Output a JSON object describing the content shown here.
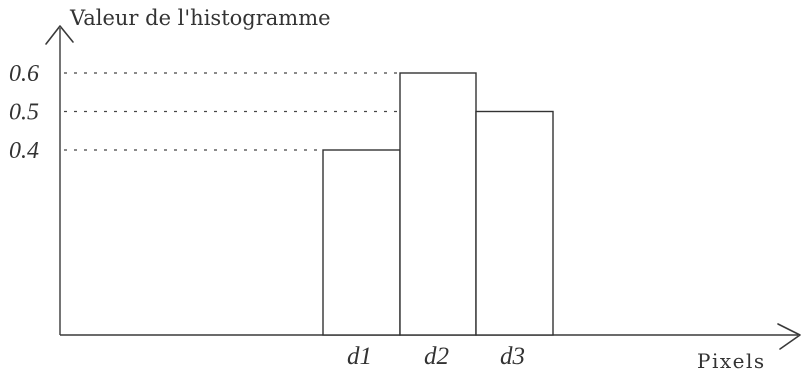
{
  "chart_data": {
    "type": "bar",
    "title": "",
    "ylabel": "Valeur de l'histogramme",
    "xlabel": "Pixels",
    "categories": [
      "d1",
      "d2",
      "d3"
    ],
    "values": [
      0.4,
      0.6,
      0.5
    ],
    "yticks": [
      "0.6",
      "0.5",
      "0.4"
    ],
    "ylim": [
      0,
      0.7
    ],
    "grid": false,
    "guide_lines": "dotted lines from the y-axis to each bar top"
  }
}
